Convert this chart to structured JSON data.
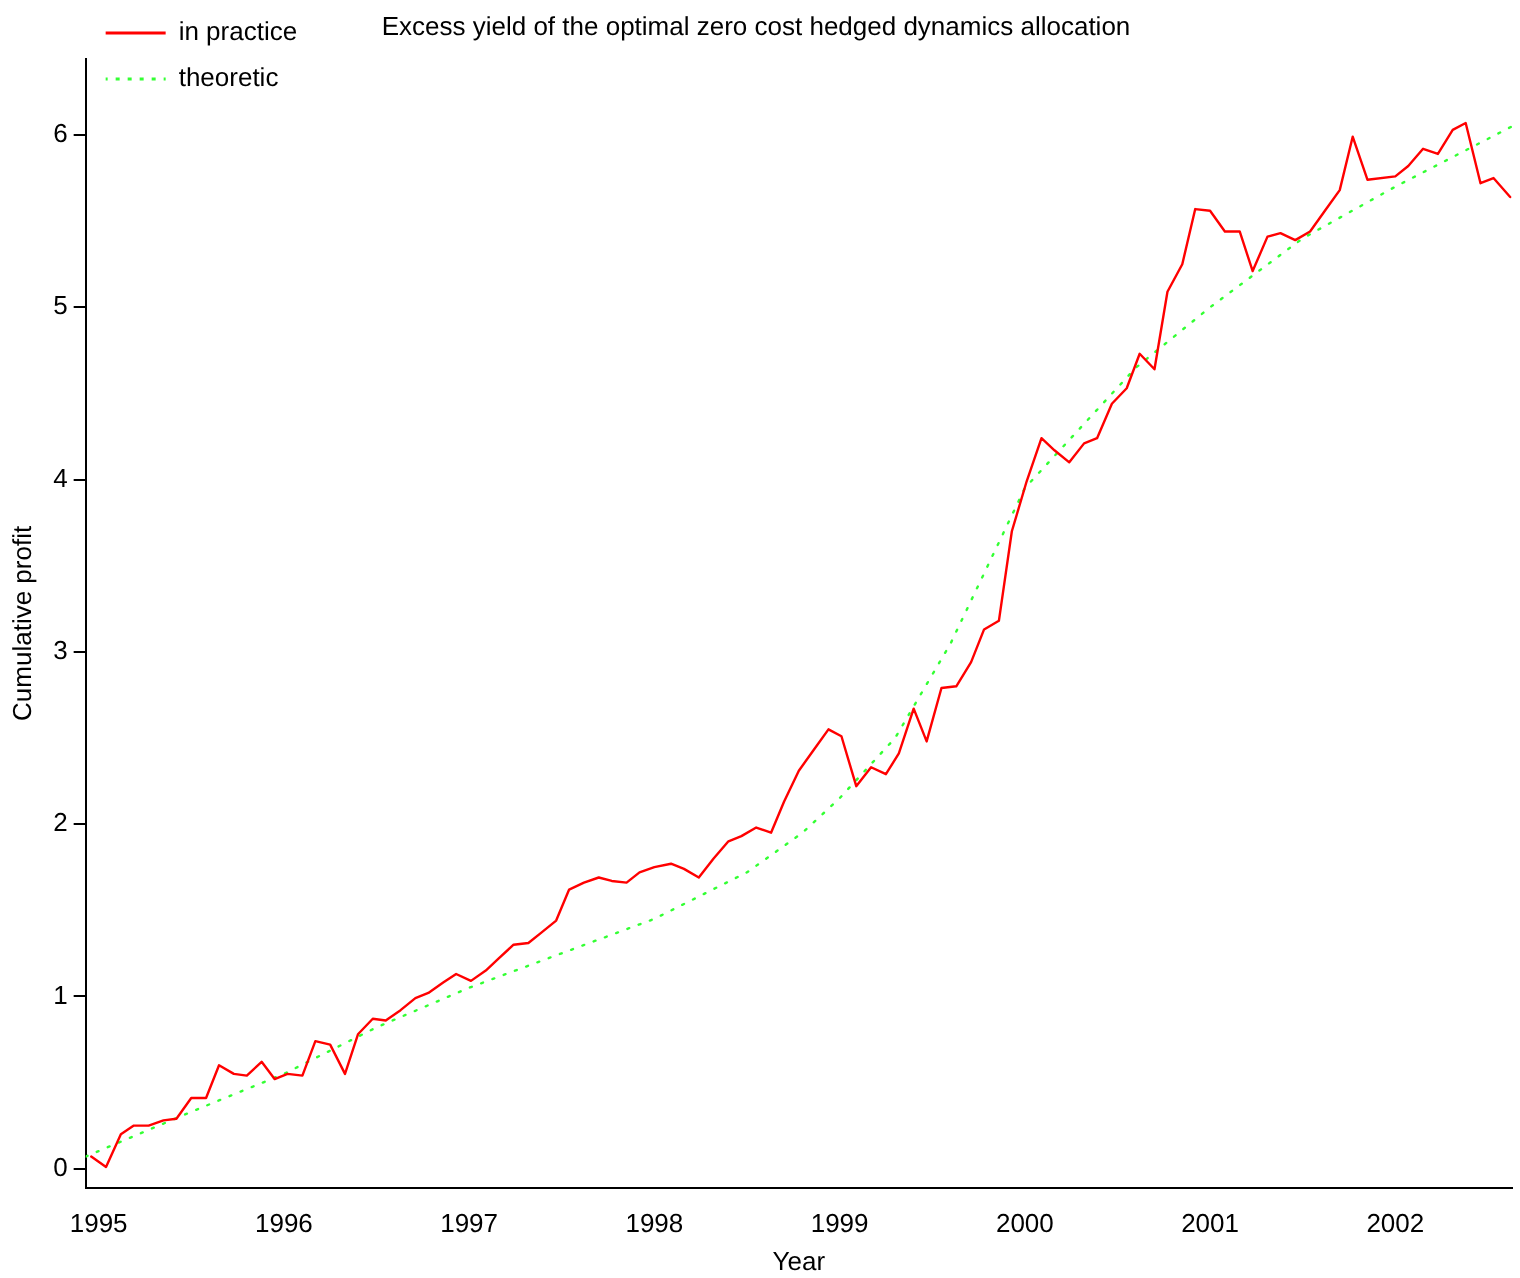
{
  "chart_data": {
    "type": "line",
    "title": "Excess yield of the optimal zero cost hedged dynamics allocation",
    "xlabel": "Year",
    "ylabel": "Cumulative profit",
    "xlim": [
      1994.93,
      2002.63
    ],
    "xticks": [
      1995,
      1996,
      1997,
      1998,
      1999,
      2000,
      2001,
      2002
    ],
    "ylim": [
      -0.11,
      6.44
    ],
    "yticks": [
      0,
      1,
      2,
      3,
      4,
      5,
      6
    ],
    "grid": false,
    "legend": "top left",
    "marker": "none",
    "series": [
      {
        "name": "in practice",
        "color": "#ff0000",
        "line_style": "solid",
        "x": [
          1994.96,
          1995.04,
          1995.12,
          1995.19,
          1995.27,
          1995.35,
          1995.42,
          1995.5,
          1995.58,
          1995.65,
          1995.73,
          1995.8,
          1995.88,
          1995.95,
          1996.02,
          1996.1,
          1996.17,
          1996.25,
          1996.33,
          1996.4,
          1996.48,
          1996.55,
          1996.63,
          1996.71,
          1996.78,
          1996.86,
          1996.93,
          1997.01,
          1997.09,
          1997.16,
          1997.24,
          1997.32,
          1997.39,
          1997.47,
          1997.54,
          1997.62,
          1997.7,
          1997.77,
          1997.85,
          1997.92,
          1998.0,
          1998.09,
          1998.16,
          1998.24,
          1998.32,
          1998.4,
          1998.47,
          1998.55,
          1998.63,
          1998.7,
          1998.78,
          1998.86,
          1998.94,
          1999.01,
          1999.09,
          1999.17,
          1999.25,
          1999.32,
          1999.4,
          1999.47,
          1999.55,
          1999.63,
          1999.71,
          1999.78,
          1999.86,
          1999.93,
          2000.01,
          2000.09,
          2000.16,
          2000.24,
          2000.32,
          2000.39,
          2000.47,
          2000.55,
          2000.62,
          2000.7,
          2000.77,
          2000.85,
          2000.92,
          2001.0,
          2001.08,
          2001.16,
          2001.23,
          2001.31,
          2001.38,
          2001.46,
          2001.54,
          2001.62,
          2001.7,
          2001.77,
          2001.85,
          2002.0,
          2002.07,
          2002.15,
          2002.23,
          2002.31,
          2002.38,
          2002.46,
          2002.53,
          2002.62
        ],
        "values": [
          0.07,
          0.01,
          0.2,
          0.25,
          0.25,
          0.28,
          0.29,
          0.41,
          0.41,
          0.6,
          0.55,
          0.54,
          0.62,
          0.52,
          0.55,
          0.54,
          0.74,
          0.72,
          0.55,
          0.78,
          0.87,
          0.86,
          0.92,
          0.99,
          1.02,
          1.08,
          1.13,
          1.09,
          1.15,
          1.22,
          1.3,
          1.31,
          1.37,
          1.44,
          1.62,
          1.66,
          1.69,
          1.67,
          1.66,
          1.72,
          1.75,
          1.77,
          1.74,
          1.69,
          1.8,
          1.9,
          1.93,
          1.98,
          1.95,
          2.13,
          2.31,
          2.43,
          2.55,
          2.51,
          2.22,
          2.33,
          2.29,
          2.41,
          2.67,
          2.48,
          2.79,
          2.8,
          2.94,
          3.13,
          3.18,
          3.7,
          3.99,
          4.24,
          4.17,
          4.1,
          4.21,
          4.24,
          4.44,
          4.53,
          4.73,
          4.64,
          5.09,
          5.25,
          5.57,
          5.56,
          5.44,
          5.44,
          5.21,
          5.41,
          5.43,
          5.39,
          5.44,
          5.56,
          5.68,
          5.99,
          5.74,
          5.76,
          5.82,
          5.92,
          5.89,
          6.03,
          6.07,
          5.72,
          5.75,
          5.64
        ]
      },
      {
        "name": "theoretic",
        "color": "#33ff33",
        "line_style": "dotted",
        "x": [
          1994.93,
          1995.5,
          1996,
          1996.5,
          1997,
          1997.5,
          1998,
          1998.5,
          1998.8,
          1999,
          1999.3,
          1999.6,
          1999.8,
          2000,
          2000.3,
          2000.6,
          2001,
          2001.5,
          2002,
          2002.63
        ],
        "values": [
          0.07,
          0.33,
          0.55,
          0.82,
          1.05,
          1.25,
          1.45,
          1.72,
          1.95,
          2.15,
          2.5,
          3.05,
          3.5,
          3.95,
          4.3,
          4.65,
          5.0,
          5.4,
          5.7,
          6.05
        ]
      }
    ]
  }
}
